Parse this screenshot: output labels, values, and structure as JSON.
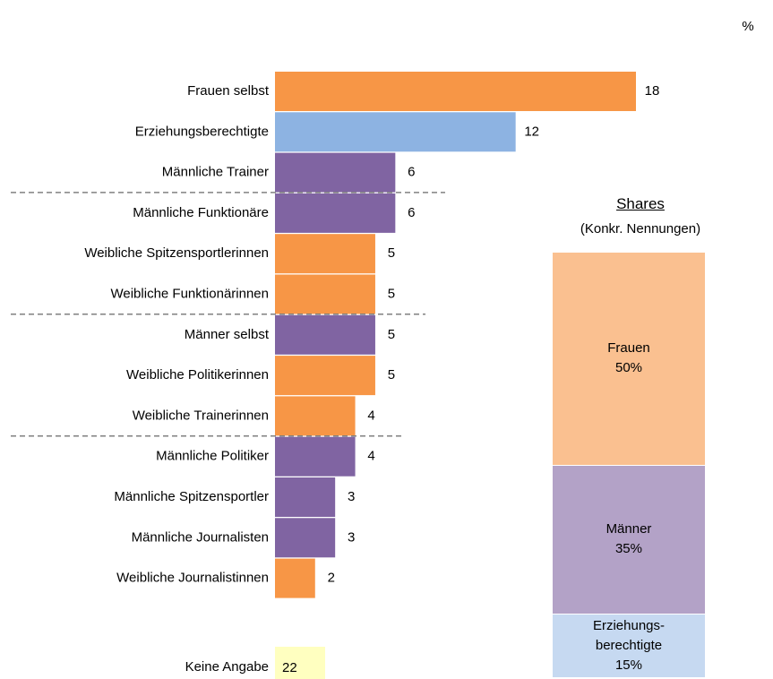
{
  "unit": "%",
  "chart_data": [
    {
      "type": "hbar",
      "categories": [
        "Frauen selbst",
        "Erziehungsberechtigte",
        "Männliche Trainer",
        "Männliche Funktionäre",
        "Weibliche Spitzensportlerinnen",
        "Weibliche Funktionärinnen",
        "Männer selbst",
        "Weibliche Politikerinnen",
        "Weibliche Trainerinnen",
        "Männliche Politiker",
        "Männliche Spitzensportler",
        "Männliche Journalisten",
        "Weibliche Journalistinnen"
      ],
      "values": [
        18,
        12,
        6,
        6,
        5,
        5,
        5,
        5,
        4,
        4,
        3,
        3,
        2
      ],
      "colors": [
        "#f79646",
        "#8db3e2",
        "#8064a2",
        "#8064a2",
        "#f79646",
        "#f79646",
        "#8064a2",
        "#f79646",
        "#f79646",
        "#8064a2",
        "#8064a2",
        "#8064a2",
        "#f79646"
      ],
      "xlim": [
        0,
        18
      ],
      "separators_after": [
        2,
        5,
        8
      ],
      "no_answer": {
        "label": "Keine Angabe",
        "value": 22,
        "color": "#ffffc0"
      }
    },
    {
      "type": "stacked_column",
      "title": "Shares",
      "subtitle": "(Konkr. Nennungen)",
      "ylim": [
        0,
        100
      ],
      "series": [
        {
          "name": "Frauen",
          "color": "#fac090",
          "values": [
            50
          ],
          "value_labels": [
            "50%"
          ]
        },
        {
          "name": "Männer",
          "color": "#b3a2c7",
          "values": [
            35
          ],
          "value_labels": [
            "35%"
          ]
        },
        {
          "name": "Erziehungs-\nberechtigte",
          "color": "#c6d9f1",
          "values": [
            15
          ],
          "value_labels": [
            "15%"
          ]
        }
      ]
    }
  ]
}
